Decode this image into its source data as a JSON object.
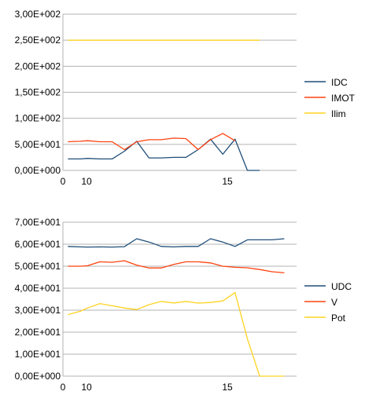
{
  "chart_data": [
    {
      "type": "line",
      "title": "",
      "xlabel": "",
      "ylabel": "",
      "x_ticks": [
        "0",
        "10",
        "15"
      ],
      "y_ticks": [
        "0,00E+000",
        "5,00E+001",
        "1,00E+002",
        "1,50E+002",
        "2,00E+002",
        "2,50E+002",
        "3,00E+002"
      ],
      "ylim": [
        0,
        300
      ],
      "xlim": [
        9,
        18.5
      ],
      "grid": true,
      "legend": "right",
      "x": [
        9.2,
        9.7,
        10,
        10.5,
        11,
        11.5,
        12,
        12.5,
        13,
        13.5,
        14,
        14.5,
        15,
        15.5,
        16,
        16.5,
        17
      ],
      "series": [
        {
          "name": "IDC",
          "color": "#1f4e79",
          "values": [
            22,
            22,
            23,
            22,
            22,
            37,
            56,
            24,
            24,
            25,
            25,
            40,
            60,
            31,
            60,
            0,
            0
          ]
        },
        {
          "name": "IMOT",
          "color": "#ff420e",
          "values": [
            55,
            56,
            57,
            55,
            55,
            40,
            55,
            59,
            59,
            62,
            61,
            40,
            59,
            71,
            57,
            null,
            null
          ]
        },
        {
          "name": "Ilim",
          "color": "#ffd320",
          "values": [
            250,
            250,
            250,
            250,
            250,
            250,
            250,
            250,
            250,
            250,
            250,
            250,
            250,
            250,
            250,
            250,
            250
          ]
        }
      ]
    },
    {
      "type": "line",
      "title": "",
      "xlabel": "",
      "ylabel": "",
      "x_ticks": [
        "0",
        "10",
        "15"
      ],
      "y_ticks": [
        "0,00E+000",
        "1,00E+001",
        "2,00E+001",
        "3,00E+001",
        "4,00E+001",
        "5,00E+001",
        "6,00E+001",
        "7,00E+001"
      ],
      "ylim": [
        0,
        70
      ],
      "xlim": [
        9,
        18.5
      ],
      "grid": true,
      "legend": "right",
      "x": [
        9.2,
        9.7,
        10,
        10.5,
        11,
        11.5,
        12,
        12.5,
        13,
        13.5,
        14,
        14.5,
        15,
        15.5,
        16,
        16.5,
        17,
        17.5,
        18
      ],
      "series": [
        {
          "name": "UDC",
          "color": "#1f4e79",
          "values": [
            59,
            58.8,
            58.7,
            58.8,
            58.7,
            58.9,
            62.5,
            61,
            59,
            58.8,
            59,
            59,
            62.5,
            61,
            59,
            62,
            62,
            62,
            62.5
          ]
        },
        {
          "name": "V",
          "color": "#ff420e",
          "values": [
            50,
            50,
            50.2,
            52,
            51.8,
            52.5,
            50.5,
            49.2,
            49.2,
            50.8,
            52,
            52,
            51.5,
            50,
            49.5,
            49.3,
            48.5,
            47.5,
            47
          ]
        },
        {
          "name": "Pot",
          "color": "#ffd320",
          "values": [
            28,
            29.5,
            31,
            33,
            32,
            31,
            30.3,
            32.5,
            34,
            33.3,
            34,
            33.2,
            33.5,
            34.2,
            38,
            17,
            0,
            0,
            0
          ]
        }
      ]
    }
  ]
}
